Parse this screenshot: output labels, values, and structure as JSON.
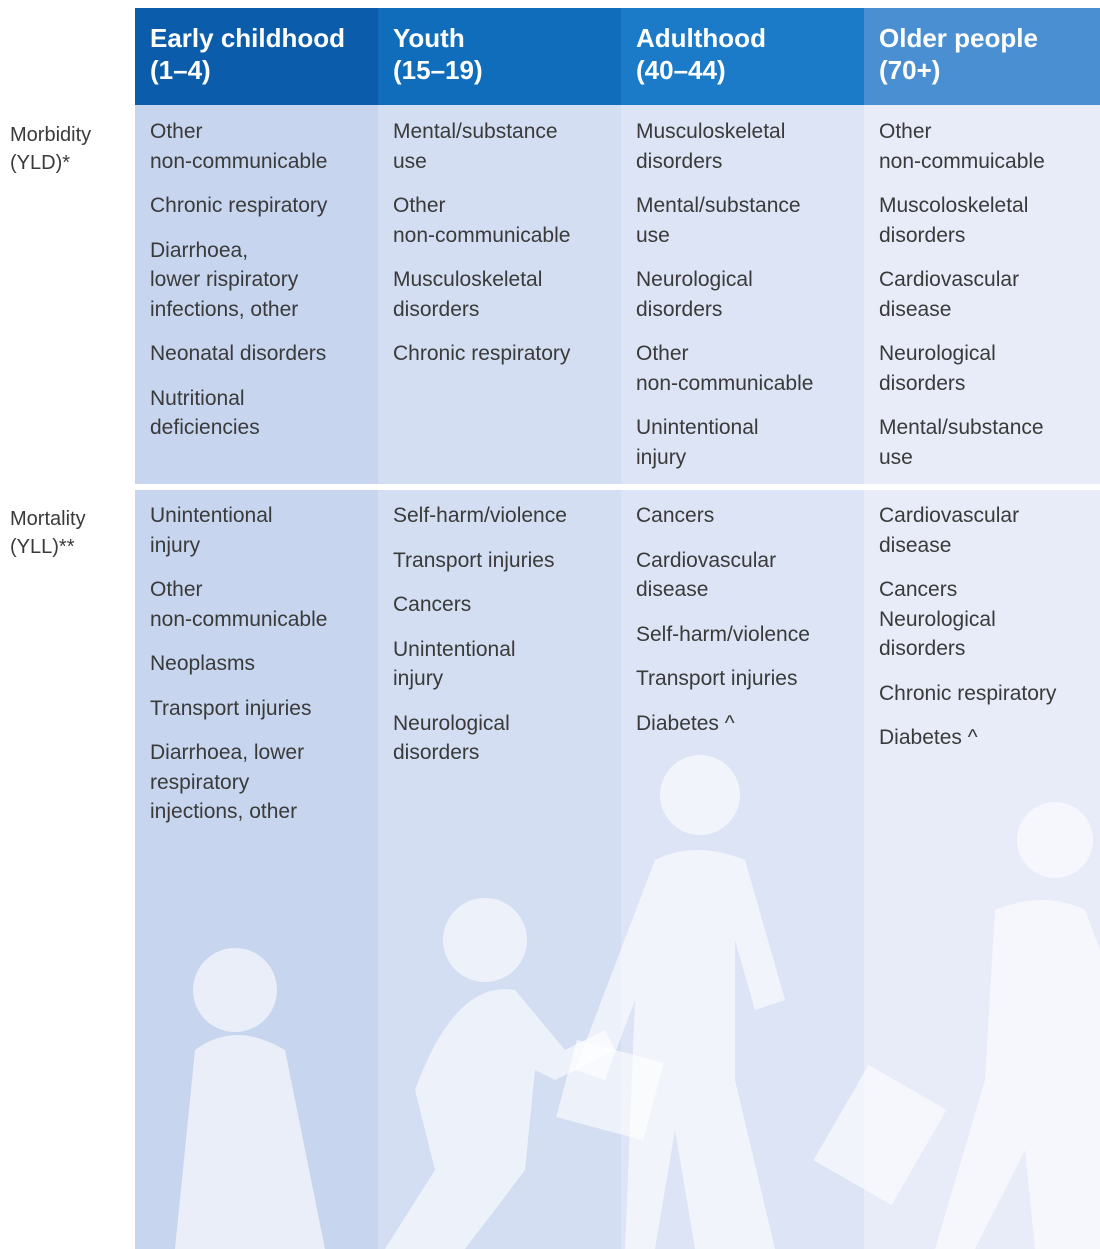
{
  "columns": [
    {
      "title": "Early childhood",
      "range": "(1–4)",
      "morbidity": [
        [
          "Other",
          "non-communicable"
        ],
        [
          "Chronic respiratory"
        ],
        [
          "Diarrhoea,",
          "lower rispiratory",
          "infections, other"
        ],
        [
          "Neonatal disorders"
        ],
        [
          "Nutritional",
          "deficiencies"
        ]
      ],
      "mortality": [
        [
          "Unintentional",
          "injury"
        ],
        [
          "Other",
          "non-communicable"
        ],
        [
          "Neoplasms"
        ],
        [
          "Transport injuries"
        ],
        [
          "Diarrhoea, lower",
          "respiratory",
          "injections, other"
        ]
      ]
    },
    {
      "title": "Youth",
      "range": "(15–19)",
      "morbidity": [
        [
          "Mental/substance",
          "use"
        ],
        [
          "Other",
          "non-communicable"
        ],
        [
          "Musculoskeletal",
          "disorders"
        ],
        [
          "Chronic respiratory"
        ]
      ],
      "mortality": [
        [
          "Self-harm/violence"
        ],
        [
          "Transport injuries"
        ],
        [
          "Cancers"
        ],
        [
          "Unintentional",
          "injury"
        ],
        [
          "Neurological",
          "disorders"
        ]
      ]
    },
    {
      "title": "Adulthood",
      "range": "(40–44)",
      "morbidity": [
        [
          "Musculoskeletal",
          "disorders"
        ],
        [
          "Mental/substance",
          "use"
        ],
        [
          "Neurological",
          "disorders"
        ],
        [
          "Other",
          "non-communicable"
        ],
        [
          "Unintentional",
          "injury"
        ]
      ],
      "mortality": [
        [
          "Cancers"
        ],
        [
          "Cardiovascular",
          "disease"
        ],
        [
          "Self-harm/violence"
        ],
        [
          "Transport injuries"
        ],
        [
          "Diabetes ^"
        ]
      ]
    },
    {
      "title": "Older people",
      "range": "(70+)",
      "morbidity": [
        [
          "Other",
          "non-commuicable"
        ],
        [
          "Muscoloskeletal",
          "disorders"
        ],
        [
          "Cardiovascular",
          "disease"
        ],
        [
          "Neurological",
          "disorders"
        ],
        [
          "Mental/substance",
          "use"
        ]
      ],
      "mortality": [
        [
          "Cardiovascular",
          "disease"
        ],
        [
          "Cancers",
          "Neurological",
          "disorders"
        ],
        [
          "Chronic respiratory"
        ],
        [
          "Diabetes ^"
        ]
      ]
    }
  ],
  "rows": {
    "morbidity": [
      "Morbidity",
      "(YLD)*"
    ],
    "mortality": [
      "Mortality",
      "(YLL)**"
    ]
  }
}
